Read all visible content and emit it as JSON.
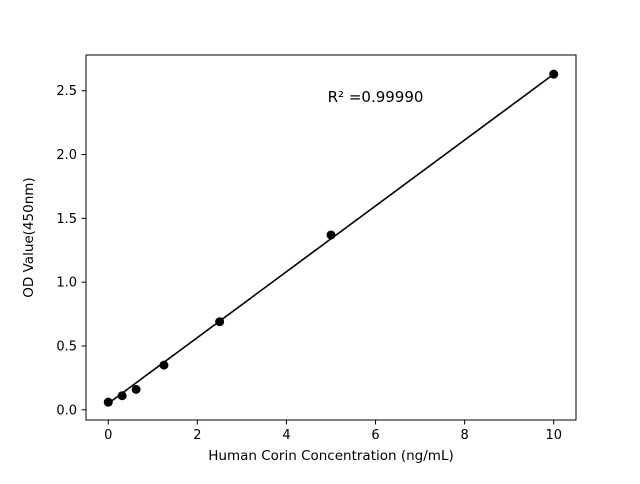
{
  "chart_data": {
    "type": "scatter",
    "title": "",
    "xlabel": "Human Corin Concentration (ng/mL)",
    "ylabel": "OD Value(450nm)",
    "xlim": [
      -0.5,
      10.5
    ],
    "ylim": [
      -0.08,
      2.78
    ],
    "xticks": [
      0,
      2,
      4,
      6,
      8,
      10
    ],
    "xtick_labels": [
      "0",
      "2",
      "4",
      "6",
      "8",
      "10"
    ],
    "yticks": [
      0.0,
      0.5,
      1.0,
      1.5,
      2.0,
      2.5
    ],
    "ytick_labels": [
      "0.0",
      "0.5",
      "1.0",
      "1.5",
      "2.0",
      "2.5"
    ],
    "points": [
      {
        "x": 0,
        "y": 0.06
      },
      {
        "x": 0.3125,
        "y": 0.11
      },
      {
        "x": 0.625,
        "y": 0.16
      },
      {
        "x": 1.25,
        "y": 0.35
      },
      {
        "x": 2.5,
        "y": 0.69
      },
      {
        "x": 5,
        "y": 1.37
      },
      {
        "x": 10,
        "y": 2.63
      }
    ],
    "line": {
      "x1": 0,
      "y1": 0.05,
      "x2": 10,
      "y2": 2.63
    },
    "annotation": {
      "text": "R² =0.99990",
      "x": 6.0,
      "y": 2.41
    },
    "legend": null,
    "grid": false,
    "colors": {
      "line": "#000000",
      "marker": "#000000",
      "axis": "#000000",
      "background": "#ffffff"
    }
  }
}
